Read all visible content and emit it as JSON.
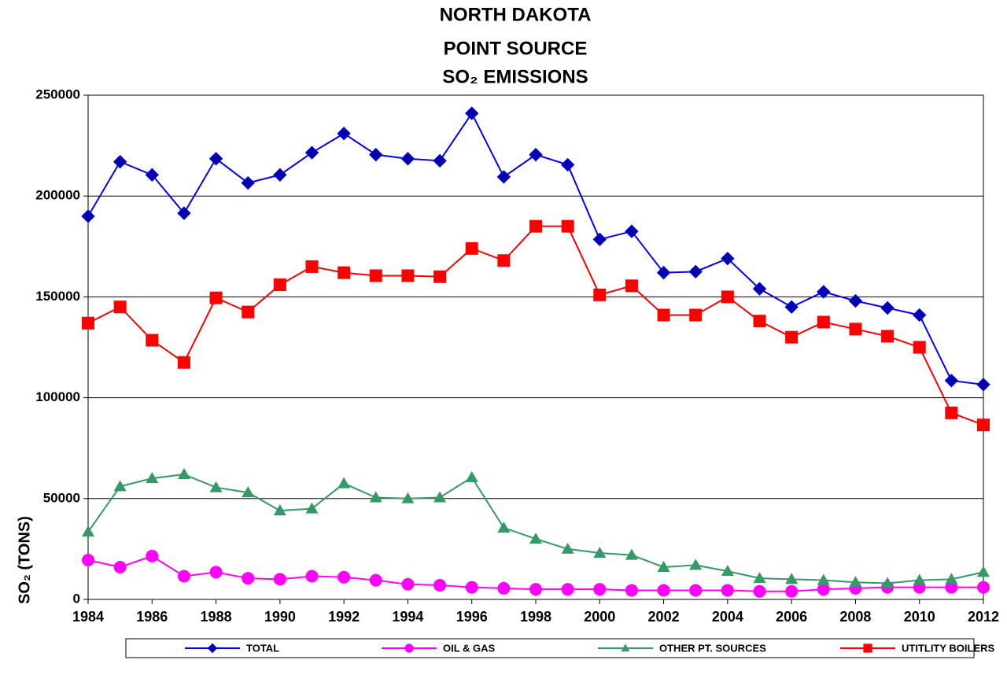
{
  "chart_data": {
    "type": "line",
    "title": [
      "NORTH  DAKOTA",
      "POINT SOURCE",
      "SO₂ EMISSIONS"
    ],
    "y_label": "SO₂  (TONS)",
    "x": [
      1984,
      1985,
      1986,
      1987,
      1988,
      1989,
      1990,
      1991,
      1992,
      1993,
      1994,
      1995,
      1996,
      1997,
      1998,
      1999,
      2000,
      2001,
      2002,
      2003,
      2004,
      2005,
      2006,
      2007,
      2008,
      2009,
      2010,
      2011,
      2012
    ],
    "xlim": [
      1984,
      2012
    ],
    "xticks": [
      1984,
      1986,
      1988,
      1990,
      1992,
      1994,
      1996,
      1998,
      2000,
      2002,
      2004,
      2006,
      2008,
      2010,
      2012
    ],
    "ylim": [
      0,
      250000
    ],
    "yticks": [
      0,
      50000,
      100000,
      150000,
      200000,
      250000
    ],
    "grid": true,
    "legend": "bottom",
    "series": [
      {
        "name": "TOTAL",
        "color": "#0000ff",
        "marker": "diamond",
        "values": [
          190000,
          217000,
          210500,
          191500,
          218500,
          206500,
          210500,
          221500,
          231000,
          220500,
          218500,
          217500,
          241000,
          209500,
          220500,
          215500,
          178500,
          182500,
          162000,
          162500,
          169000,
          154000,
          145000,
          152500,
          148000,
          144500,
          141000,
          108500,
          106500
        ]
      },
      {
        "name": "OIL & GAS",
        "color": "#ff00ff",
        "marker": "circle",
        "values": [
          19500,
          16000,
          21500,
          11500,
          13500,
          10500,
          10000,
          11500,
          11000,
          9500,
          7500,
          7000,
          6000,
          5500,
          5000,
          5000,
          5000,
          4500,
          4500,
          4500,
          4500,
          4000,
          4000,
          5000,
          5500,
          6000,
          6000,
          6000,
          6000
        ]
      },
      {
        "name": "OTHER PT. SOURCES",
        "color": "#339966",
        "marker": "triangle",
        "values": [
          33500,
          56000,
          60000,
          62000,
          55500,
          53000,
          44000,
          45000,
          57500,
          50500,
          50000,
          50500,
          60500,
          35500,
          30000,
          25000,
          23000,
          22000,
          16000,
          17000,
          14000,
          10500,
          10000,
          9500,
          8500,
          8000,
          9500,
          10000,
          13500
        ]
      },
      {
        "name": "UTITLITY BOILERS",
        "color": "#ff0000",
        "marker": "square",
        "values": [
          137000,
          145000,
          128500,
          117500,
          149500,
          142500,
          156000,
          165000,
          162000,
          160500,
          160500,
          160000,
          174000,
          168000,
          185000,
          185000,
          151000,
          155500,
          141000,
          141000,
          150000,
          138000,
          130000,
          137500,
          134000,
          130500,
          125000,
          92500,
          86500
        ]
      }
    ]
  }
}
